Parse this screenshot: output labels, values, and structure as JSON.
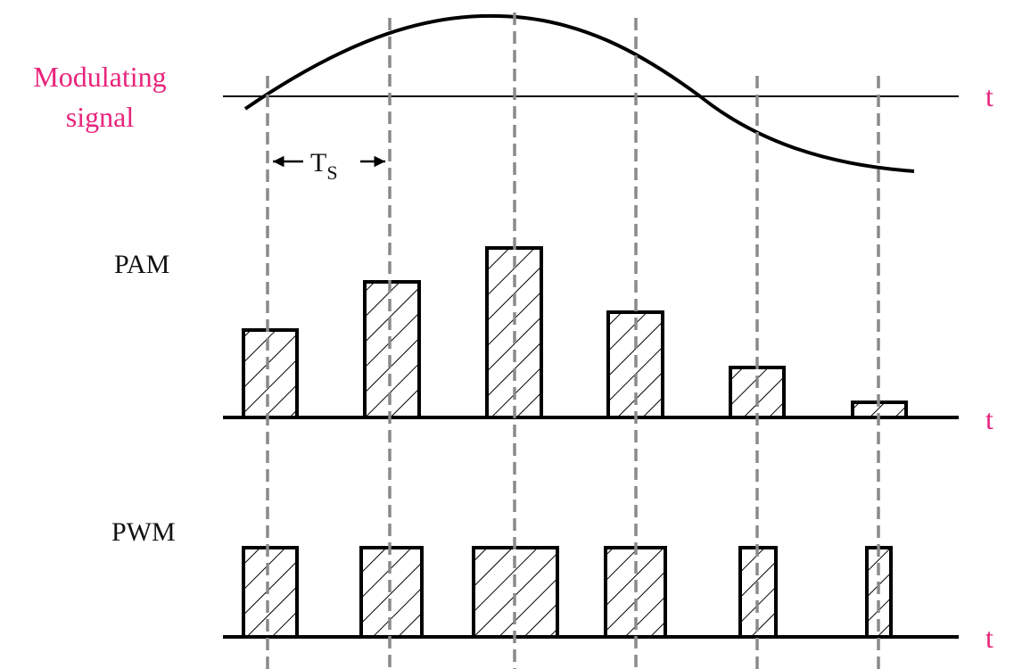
{
  "labels": {
    "modulating": [
      "Modulating",
      "signal"
    ],
    "ts": {
      "main": "T",
      "sub": "S"
    },
    "pam": "PAM",
    "pwm": "PWM",
    "t_axes": [
      "t",
      "t",
      "t"
    ]
  }
}
